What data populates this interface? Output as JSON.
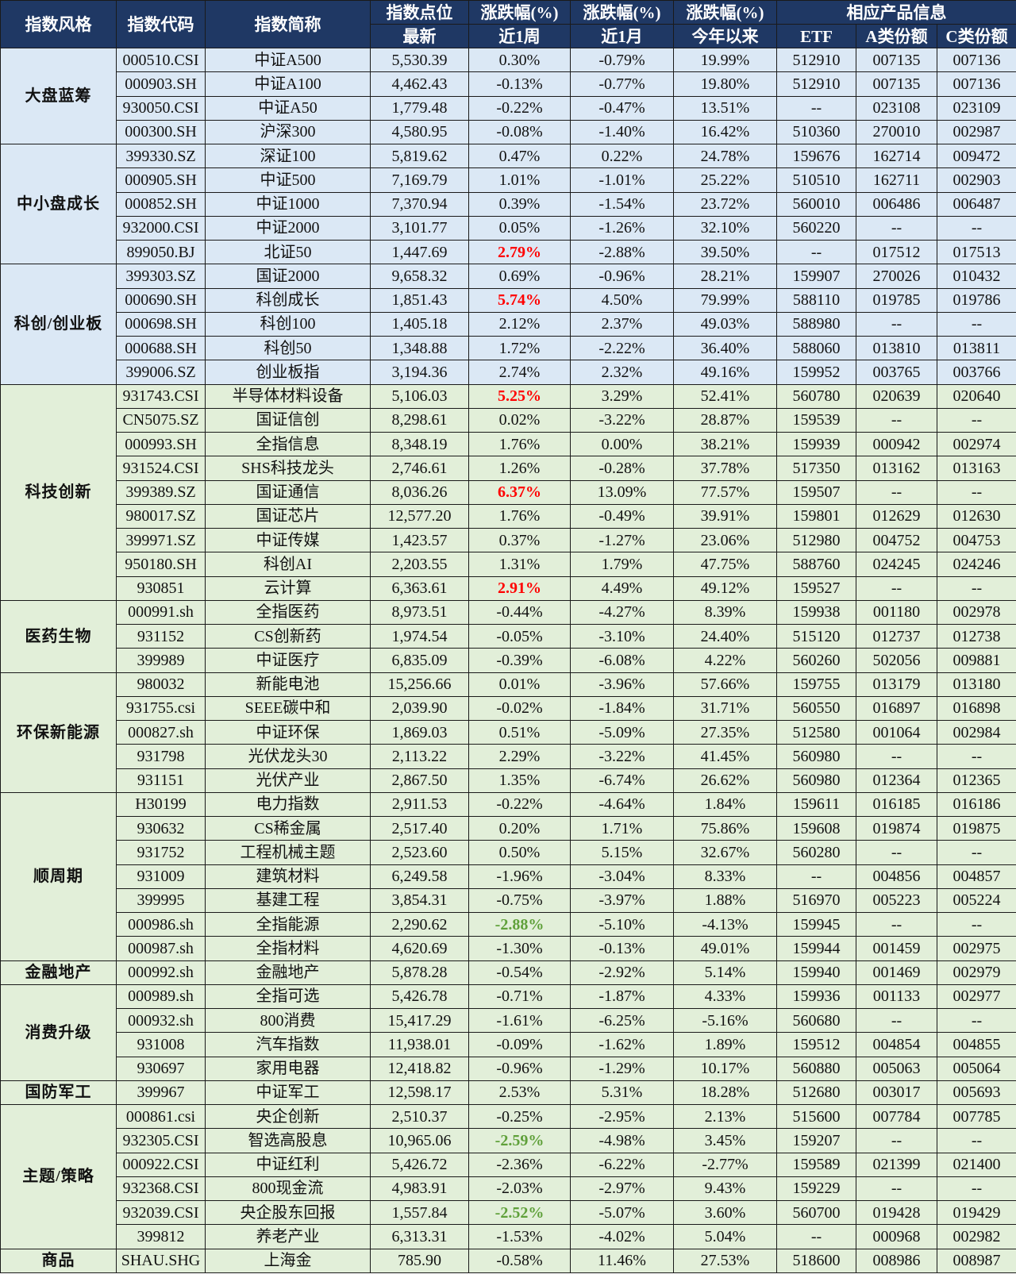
{
  "header": {
    "style": "指数风格",
    "code": "指数代码",
    "name": "指数简称",
    "level": "指数点位",
    "level_sub": "最新",
    "chg_week": "涨跌幅(%)",
    "chg_week_sub": "近1周",
    "chg_month": "涨跌幅(%)",
    "chg_month_sub": "近1月",
    "chg_ytd": "涨跌幅(%)",
    "chg_ytd_sub": "今年以来",
    "products": "相应产品信息",
    "etf": "ETF",
    "a_share": "A类份额",
    "c_share": "C类份额"
  },
  "colors": {
    "header_bg": "#1f3864",
    "blue_section": "#dbe8f5",
    "green_section": "#e2efd9",
    "up_highlight": "#ff0000",
    "down_highlight": "#5fa03a"
  },
  "groups": [
    {
      "name": "大盘蓝筹",
      "bg": "blue",
      "rows": [
        {
          "code": "000510.CSI",
          "name": "中证A500",
          "level": "5,530.39",
          "w": "0.30%",
          "m": "-0.79%",
          "y": "19.99%",
          "etf": "512910",
          "a": "007135",
          "c": "007136"
        },
        {
          "code": "000903.SH",
          "name": "中证A100",
          "level": "4,462.43",
          "w": "-0.13%",
          "m": "-0.77%",
          "y": "19.80%",
          "etf": "512910",
          "a": "007135",
          "c": "007136"
        },
        {
          "code": "930050.CSI",
          "name": "中证A50",
          "level": "1,779.48",
          "w": "-0.22%",
          "m": "-0.47%",
          "y": "13.51%",
          "etf": "--",
          "a": "023108",
          "c": "023109"
        },
        {
          "code": "000300.SH",
          "name": "沪深300",
          "level": "4,580.95",
          "w": "-0.08%",
          "m": "-1.40%",
          "y": "16.42%",
          "etf": "510360",
          "a": "270010",
          "c": "002987"
        }
      ]
    },
    {
      "name": "中小盘成长",
      "bg": "blue",
      "rows": [
        {
          "code": "399330.SZ",
          "name": "深证100",
          "level": "5,819.62",
          "w": "0.47%",
          "m": "0.22%",
          "y": "24.78%",
          "etf": "159676",
          "a": "162714",
          "c": "009472"
        },
        {
          "code": "000905.SH",
          "name": "中证500",
          "level": "7,169.79",
          "w": "1.01%",
          "m": "-1.01%",
          "y": "25.22%",
          "etf": "510510",
          "a": "162711",
          "c": "002903"
        },
        {
          "code": "000852.SH",
          "name": "中证1000",
          "level": "7,370.94",
          "w": "0.39%",
          "m": "-1.54%",
          "y": "23.72%",
          "etf": "560010",
          "a": "006486",
          "c": "006487"
        },
        {
          "code": "932000.CSI",
          "name": "中证2000",
          "level": "3,101.77",
          "w": "0.05%",
          "m": "-1.26%",
          "y": "32.10%",
          "etf": "560220",
          "a": "--",
          "c": "--"
        },
        {
          "code": "899050.BJ",
          "name": "北证50",
          "level": "1,447.69",
          "w": "2.79%",
          "wc": "red",
          "m": "-2.88%",
          "y": "39.50%",
          "etf": "--",
          "a": "017512",
          "c": "017513"
        }
      ]
    },
    {
      "name": "科创/创业板",
      "bg": "blue",
      "rows": [
        {
          "code": "399303.SZ",
          "name": "国证2000",
          "level": "9,658.32",
          "w": "0.69%",
          "m": "-0.96%",
          "y": "28.21%",
          "etf": "159907",
          "a": "270026",
          "c": "010432"
        },
        {
          "code": "000690.SH",
          "name": "科创成长",
          "level": "1,851.43",
          "w": "5.74%",
          "wc": "red",
          "m": "4.50%",
          "y": "79.99%",
          "etf": "588110",
          "a": "019785",
          "c": "019786"
        },
        {
          "code": "000698.SH",
          "name": "科创100",
          "level": "1,405.18",
          "w": "2.12%",
          "m": "2.37%",
          "y": "49.03%",
          "etf": "588980",
          "a": "--",
          "c": "--"
        },
        {
          "code": "000688.SH",
          "name": "科创50",
          "level": "1,348.88",
          "w": "1.72%",
          "m": "-2.22%",
          "y": "36.40%",
          "etf": "588060",
          "a": "013810",
          "c": "013811"
        },
        {
          "code": "399006.SZ",
          "name": "创业板指",
          "level": "3,194.36",
          "w": "2.74%",
          "m": "2.32%",
          "y": "49.16%",
          "etf": "159952",
          "a": "003765",
          "c": "003766"
        }
      ]
    },
    {
      "name": "科技创新",
      "bg": "green",
      "rows": [
        {
          "code": "931743.CSI",
          "name": "半导体材料设备",
          "level": "5,106.03",
          "w": "5.25%",
          "wc": "red",
          "m": "3.29%",
          "y": "52.41%",
          "etf": "560780",
          "a": "020639",
          "c": "020640"
        },
        {
          "code": "CN5075.SZ",
          "name": "国证信创",
          "level": "8,298.61",
          "w": "0.02%",
          "m": "-3.22%",
          "y": "28.87%",
          "etf": "159539",
          "a": "--",
          "c": "--"
        },
        {
          "code": "000993.SH",
          "name": "全指信息",
          "level": "8,348.19",
          "w": "1.76%",
          "m": "0.00%",
          "y": "38.21%",
          "etf": "159939",
          "a": "000942",
          "c": "002974"
        },
        {
          "code": "931524.CSI",
          "name": "SHS科技龙头",
          "level": "2,746.61",
          "w": "1.26%",
          "m": "-0.28%",
          "y": "37.78%",
          "etf": "517350",
          "a": "013162",
          "c": "013163"
        },
        {
          "code": "399389.SZ",
          "name": "国证通信",
          "level": "8,036.26",
          "w": "6.37%",
          "wc": "red",
          "m": "13.09%",
          "y": "77.57%",
          "etf": "159507",
          "a": "--",
          "c": "--"
        },
        {
          "code": "980017.SZ",
          "name": "国证芯片",
          "level": "12,577.20",
          "w": "1.76%",
          "m": "-0.49%",
          "y": "39.91%",
          "etf": "159801",
          "a": "012629",
          "c": "012630"
        },
        {
          "code": "399971.SZ",
          "name": "中证传媒",
          "level": "1,423.57",
          "w": "0.37%",
          "m": "-1.27%",
          "y": "23.06%",
          "etf": "512980",
          "a": "004752",
          "c": "004753"
        },
        {
          "code": "950180.SH",
          "name": "科创AI",
          "level": "2,203.55",
          "w": "1.31%",
          "m": "1.79%",
          "y": "47.75%",
          "etf": "588760",
          "a": "024245",
          "c": "024246"
        },
        {
          "code": "930851",
          "name": "云计算",
          "level": "6,363.61",
          "w": "2.91%",
          "wc": "red",
          "m": "4.49%",
          "y": "49.12%",
          "etf": "159527",
          "a": "--",
          "c": "--"
        }
      ]
    },
    {
      "name": "医药生物",
      "bg": "green",
      "rows": [
        {
          "code": "000991.sh",
          "name": "全指医药",
          "level": "8,973.51",
          "w": "-0.44%",
          "m": "-4.27%",
          "y": "8.39%",
          "etf": "159938",
          "a": "001180",
          "c": "002978"
        },
        {
          "code": "931152",
          "name": "CS创新药",
          "level": "1,974.54",
          "w": "-0.05%",
          "m": "-3.10%",
          "y": "24.40%",
          "etf": "515120",
          "a": "012737",
          "c": "012738"
        },
        {
          "code": "399989",
          "name": "中证医疗",
          "level": "6,835.09",
          "w": "-0.39%",
          "m": "-6.08%",
          "y": "4.22%",
          "etf": "560260",
          "a": "502056",
          "c": "009881"
        }
      ]
    },
    {
      "name": "环保新能源",
      "bg": "green",
      "rows": [
        {
          "code": "980032",
          "name": "新能电池",
          "level": "15,256.66",
          "w": "0.01%",
          "m": "-3.96%",
          "y": "57.66%",
          "etf": "159755",
          "a": "013179",
          "c": "013180"
        },
        {
          "code": "931755.csi",
          "name": "SEEE碳中和",
          "level": "2,039.90",
          "w": "-0.02%",
          "m": "-1.84%",
          "y": "31.71%",
          "etf": "560550",
          "a": "016897",
          "c": "016898"
        },
        {
          "code": "000827.sh",
          "name": "中证环保",
          "level": "1,869.03",
          "w": "0.51%",
          "m": "-5.09%",
          "y": "27.35%",
          "etf": "512580",
          "a": "001064",
          "c": "002984"
        },
        {
          "code": "931798",
          "name": "光伏龙头30",
          "level": "2,113.22",
          "w": "2.29%",
          "m": "-3.22%",
          "y": "41.45%",
          "etf": "560980",
          "a": "--",
          "c": "--"
        },
        {
          "code": "931151",
          "name": "光伏产业",
          "level": "2,867.50",
          "w": "1.35%",
          "m": "-6.74%",
          "y": "26.62%",
          "etf": "560980",
          "a": "012364",
          "c": "012365"
        }
      ]
    },
    {
      "name": "顺周期",
      "bg": "green",
      "rows": [
        {
          "code": "H30199",
          "name": "电力指数",
          "level": "2,911.53",
          "w": "-0.22%",
          "m": "-4.64%",
          "y": "1.84%",
          "etf": "159611",
          "a": "016185",
          "c": "016186"
        },
        {
          "code": "930632",
          "name": "CS稀金属",
          "level": "2,517.40",
          "w": "0.20%",
          "m": "1.71%",
          "y": "75.86%",
          "etf": "159608",
          "a": "019874",
          "c": "019875"
        },
        {
          "code": "931752",
          "name": "工程机械主题",
          "level": "2,523.60",
          "w": "0.50%",
          "m": "5.15%",
          "y": "32.67%",
          "etf": "560280",
          "a": "--",
          "c": "--"
        },
        {
          "code": "931009",
          "name": "建筑材料",
          "level": "6,249.58",
          "w": "-1.96%",
          "m": "-3.04%",
          "y": "8.33%",
          "etf": "--",
          "a": "004856",
          "c": "004857"
        },
        {
          "code": "399995",
          "name": "基建工程",
          "level": "3,854.31",
          "w": "-0.75%",
          "m": "-3.97%",
          "y": "1.88%",
          "etf": "516970",
          "a": "005223",
          "c": "005224"
        },
        {
          "code": "000986.sh",
          "name": "全指能源",
          "level": "2,290.62",
          "w": "-2.88%",
          "wc": "green",
          "m": "-5.10%",
          "y": "-4.13%",
          "etf": "159945",
          "a": "--",
          "c": "--"
        },
        {
          "code": "000987.sh",
          "name": "全指材料",
          "level": "4,620.69",
          "w": "-1.30%",
          "m": "-0.13%",
          "y": "49.01%",
          "etf": "159944",
          "a": "001459",
          "c": "002975"
        }
      ]
    },
    {
      "name": "金融地产",
      "bg": "green",
      "rows": [
        {
          "code": "000992.sh",
          "name": "金融地产",
          "level": "5,878.28",
          "w": "-0.54%",
          "m": "-2.92%",
          "y": "5.14%",
          "etf": "159940",
          "a": "001469",
          "c": "002979"
        }
      ]
    },
    {
      "name": "消费升级",
      "bg": "green",
      "rows": [
        {
          "code": "000989.sh",
          "name": "全指可选",
          "level": "5,426.78",
          "w": "-0.71%",
          "m": "-1.87%",
          "y": "4.33%",
          "etf": "159936",
          "a": "001133",
          "c": "002977"
        },
        {
          "code": "000932.sh",
          "name": "800消费",
          "level": "15,417.29",
          "w": "-1.61%",
          "m": "-6.25%",
          "y": "-5.16%",
          "etf": "560680",
          "a": "--",
          "c": "--"
        },
        {
          "code": "931008",
          "name": "汽车指数",
          "level": "11,938.01",
          "w": "-0.09%",
          "m": "-1.62%",
          "y": "1.89%",
          "etf": "159512",
          "a": "004854",
          "c": "004855"
        },
        {
          "code": "930697",
          "name": "家用电器",
          "level": "12,418.82",
          "w": "-0.96%",
          "m": "-1.29%",
          "y": "10.17%",
          "etf": "560880",
          "a": "005063",
          "c": "005064"
        }
      ]
    },
    {
      "name": "国防军工",
      "bg": "green",
      "rows": [
        {
          "code": "399967",
          "name": "中证军工",
          "level": "12,598.17",
          "w": "2.53%",
          "m": "5.31%",
          "y": "18.28%",
          "etf": "512680",
          "a": "003017",
          "c": "005693"
        }
      ]
    },
    {
      "name": "主题/策略",
      "bg": "green",
      "rows": [
        {
          "code": "000861.csi",
          "name": "央企创新",
          "level": "2,510.37",
          "w": "-0.25%",
          "m": "-2.95%",
          "y": "2.13%",
          "etf": "515600",
          "a": "007784",
          "c": "007785"
        },
        {
          "code": "932305.CSI",
          "name": "智选高股息",
          "level": "10,965.06",
          "w": "-2.59%",
          "wc": "green",
          "m": "-4.98%",
          "y": "3.45%",
          "etf": "159207",
          "a": "--",
          "c": "--"
        },
        {
          "code": "000922.CSI",
          "name": "中证红利",
          "level": "5,426.72",
          "w": "-2.36%",
          "m": "-6.22%",
          "y": "-2.77%",
          "etf": "159589",
          "a": "021399",
          "c": "021400"
        },
        {
          "code": "932368.CSI",
          "name": "800现金流",
          "level": "4,983.91",
          "w": "-2.03%",
          "m": "-2.97%",
          "y": "9.43%",
          "etf": "159229",
          "a": "--",
          "c": "--"
        },
        {
          "code": "932039.CSI",
          "name": "央企股东回报",
          "level": "1,557.84",
          "w": "-2.52%",
          "wc": "green",
          "m": "-5.07%",
          "y": "3.60%",
          "etf": "560700",
          "a": "019428",
          "c": "019429"
        },
        {
          "code": "399812",
          "name": "养老产业",
          "level": "6,313.31",
          "w": "-1.53%",
          "m": "-4.02%",
          "y": "5.04%",
          "etf": "--",
          "a": "000968",
          "c": "002982"
        }
      ]
    },
    {
      "name": "商品",
      "bg": "green",
      "rows": [
        {
          "code": "SHAU.SHG",
          "name": "上海金",
          "level": "785.90",
          "w": "-0.58%",
          "m": "11.46%",
          "y": "27.53%",
          "etf": "518600",
          "a": "008986",
          "c": "008987"
        }
      ]
    }
  ]
}
